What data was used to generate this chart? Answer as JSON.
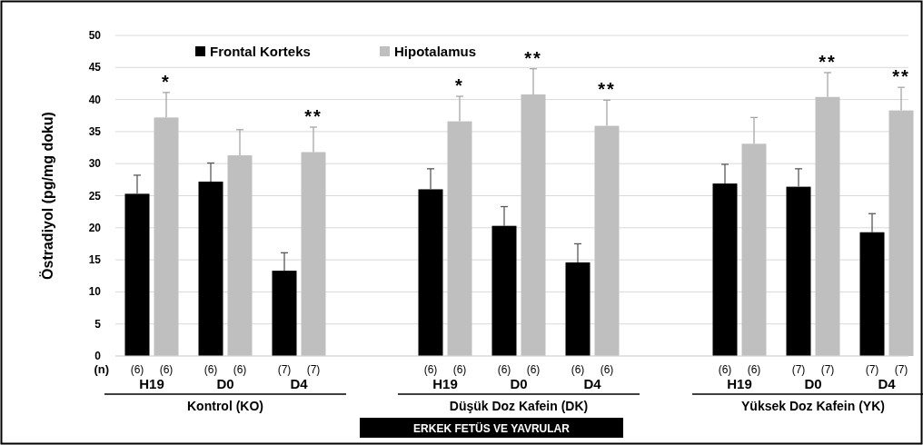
{
  "chart_data": [
    {
      "type": "bar",
      "ylabel": "Östradiyol (pg/mg doku)",
      "xlabel": "Kontrol (KO)",
      "categories": [
        "H19",
        "D0",
        "D4"
      ],
      "ylim": [
        0,
        50
      ],
      "yticks": [
        0,
        5,
        10,
        15,
        20,
        25,
        30,
        35,
        40,
        45,
        50
      ],
      "grid": "y",
      "legend": "top",
      "series": [
        {
          "name": "Frontal Korteks",
          "color": "#000000",
          "values": [
            25.3,
            27.2,
            13.3
          ],
          "errors": [
            2.9,
            2.9,
            2.8
          ]
        },
        {
          "name": "Hipotalamus",
          "color": "#bfbfbf",
          "values": [
            37.2,
            31.3,
            31.8
          ],
          "errors": [
            3.9,
            4.0,
            3.9
          ],
          "value_labels": [
            "*",
            null,
            "**"
          ]
        }
      ],
      "annotations": [
        "(n)",
        "(6)",
        "(6)",
        "(6)",
        "(6)",
        "(7)",
        "(7)"
      ]
    },
    {
      "type": "bar",
      "xlabel": "Düşük Doz Kafein (DK)",
      "categories": [
        "H19",
        "D0",
        "D4"
      ],
      "ylim": [
        0,
        50
      ],
      "yticks": [
        0,
        5,
        10,
        15,
        20,
        25,
        30,
        35,
        40,
        45,
        50
      ],
      "grid": "y",
      "tick_labels": "x",
      "series": [
        {
          "color": "#000000",
          "values": [
            26.0,
            20.3,
            14.6
          ],
          "errors": [
            3.2,
            3.0,
            2.9
          ]
        },
        {
          "color": "#bfbfbf",
          "values": [
            36.6,
            40.8,
            35.9
          ],
          "errors": [
            3.9,
            4.0,
            4.0
          ],
          "value_labels": [
            "*",
            "**",
            "**"
          ]
        }
      ],
      "annotations": [
        "ERKEK FETÜS VE YAVRULAR",
        "(6)",
        "(6)",
        "(6)",
        "(6)",
        "(6)",
        "(6)"
      ]
    },
    {
      "type": "bar",
      "xlabel": "Yüksek Doz Kafein (YK)",
      "categories": [
        "H19",
        "D0",
        "D4"
      ],
      "ylim": [
        0,
        50
      ],
      "yticks": [
        0,
        5,
        10,
        15,
        20,
        25,
        30,
        35,
        40,
        45,
        50
      ],
      "grid": "y",
      "tick_labels": "x",
      "series": [
        {
          "color": "#000000",
          "values": [
            26.9,
            26.4,
            19.3
          ],
          "errors": [
            3.0,
            2.8,
            2.9
          ]
        },
        {
          "color": "#bfbfbf",
          "values": [
            33.1,
            40.4,
            38.3
          ],
          "errors": [
            4.1,
            3.8,
            3.6
          ],
          "value_labels": [
            null,
            "**",
            "**"
          ]
        }
      ],
      "annotations": [
        "(6)",
        "(6)",
        "(7)",
        "(7)",
        "(7)",
        "(7)"
      ]
    }
  ]
}
